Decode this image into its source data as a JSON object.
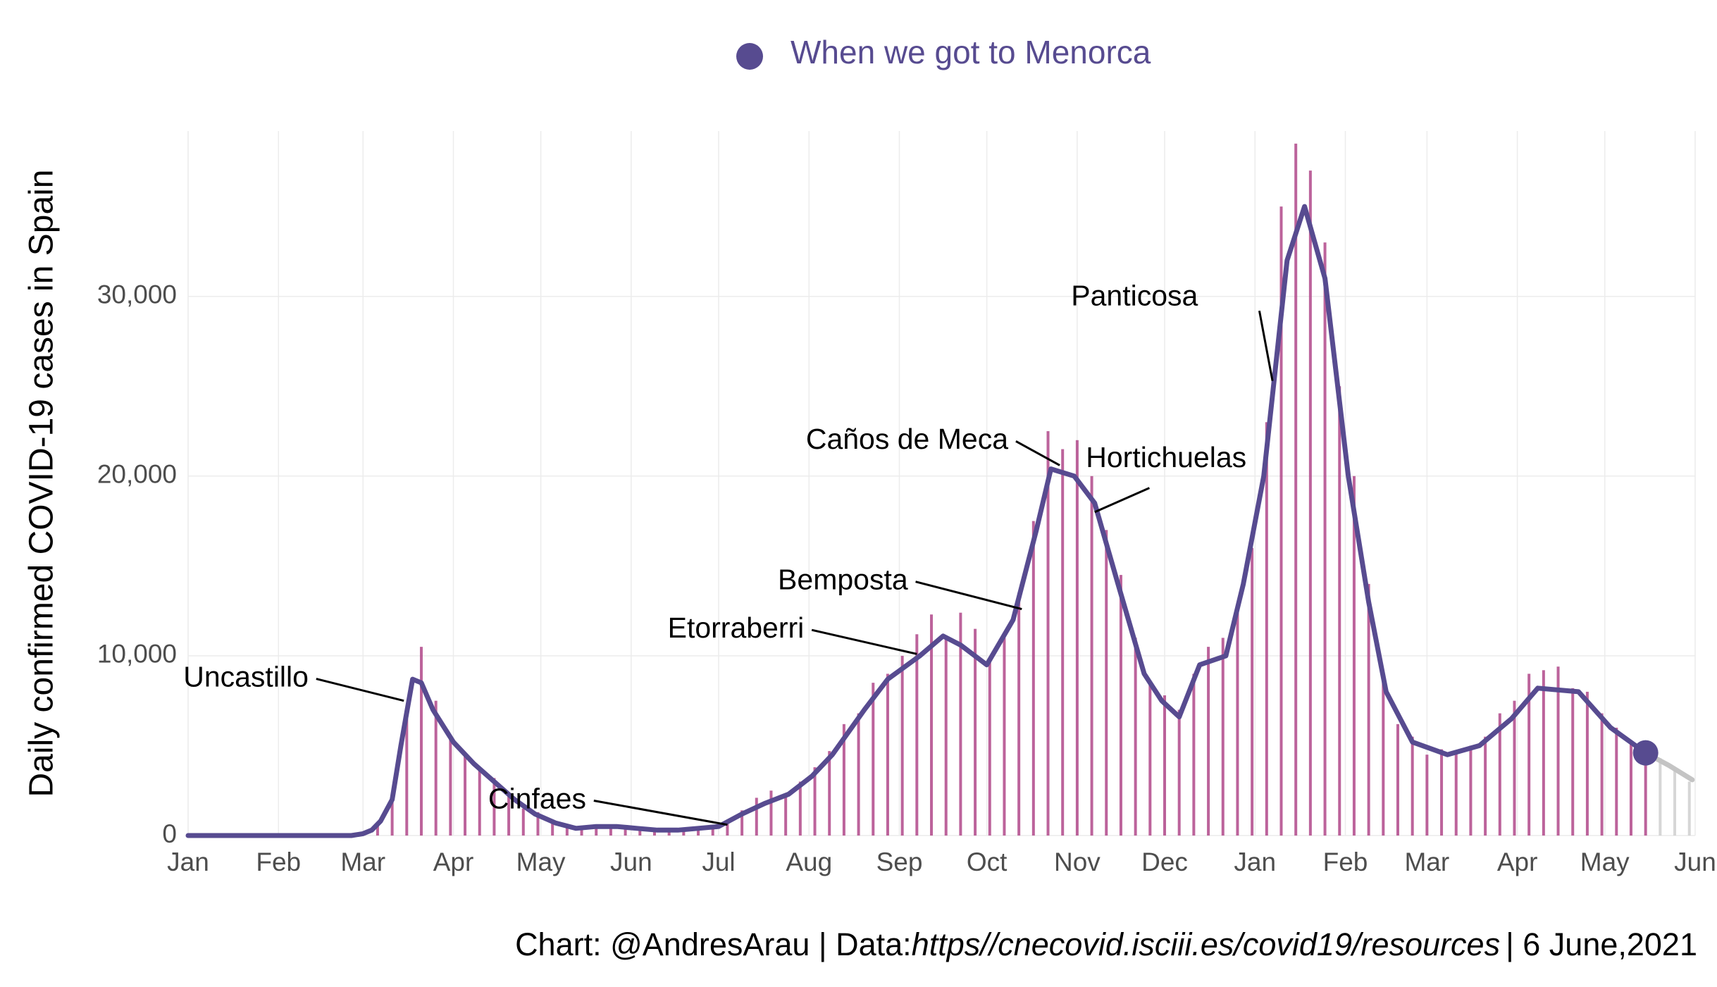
{
  "chart_data": {
    "type": "combo",
    "y_label": "Daily confirmed COVID-19 cases in Spain",
    "caption": {
      "prefix": "Chart: @AndresArau | Data:",
      "url": "https//cnecovid.isciii.es/covid19/resources",
      "suffix": "| 6 June,2021"
    },
    "xlim": [
      0,
      517
    ],
    "xticks": [
      {
        "value": 0,
        "label": "Jan"
      },
      {
        "value": 31,
        "label": "Feb"
      },
      {
        "value": 60,
        "label": "Mar"
      },
      {
        "value": 91,
        "label": "Apr"
      },
      {
        "value": 121,
        "label": "May"
      },
      {
        "value": 152,
        "label": "Jun"
      },
      {
        "value": 182,
        "label": "Jul"
      },
      {
        "value": 213,
        "label": "Aug"
      },
      {
        "value": 244,
        "label": "Sep"
      },
      {
        "value": 274,
        "label": "Oct"
      },
      {
        "value": 305,
        "label": "Nov"
      },
      {
        "value": 335,
        "label": "Dec"
      },
      {
        "value": 366,
        "label": "Jan"
      },
      {
        "value": 397,
        "label": "Feb"
      },
      {
        "value": 425,
        "label": "Mar"
      },
      {
        "value": 456,
        "label": "Apr"
      },
      {
        "value": 486,
        "label": "May"
      },
      {
        "value": 517,
        "label": "Jun"
      }
    ],
    "ylim": [
      0,
      39200
    ],
    "yticks": [
      0,
      {
        "value": 10000,
        "label": "10,000"
      },
      {
        "value": 20000,
        "label": "20,000"
      },
      {
        "value": 30000,
        "label": "30,000"
      }
    ],
    "grid": true,
    "legend": "top",
    "series": [
      {
        "type": "bar",
        "color": "#b0488a",
        "x": [
          60,
          65,
          70,
          75,
          80,
          85,
          90,
          95,
          100,
          105,
          110,
          115,
          120,
          125,
          130,
          135,
          140,
          145,
          150,
          155,
          160,
          165,
          170,
          175,
          180,
          185,
          190,
          195,
          200,
          205,
          210,
          215,
          220,
          225,
          230,
          235,
          240,
          245,
          250,
          255,
          260,
          265,
          270,
          275,
          280,
          285,
          290,
          295,
          300,
          305,
          310,
          315,
          320,
          325,
          330,
          335,
          340,
          345,
          350,
          355,
          360,
          365,
          370,
          375,
          380,
          385,
          390,
          395,
          400,
          405,
          410,
          415,
          420,
          425,
          430,
          435,
          440,
          445,
          450,
          455,
          460,
          465,
          470,
          475,
          480,
          485,
          490,
          495,
          500
        ],
        "values": [
          150,
          600,
          2000,
          6500,
          10500,
          7500,
          5500,
          4500,
          3800,
          3200,
          2300,
          1500,
          1300,
          800,
          500,
          400,
          600,
          500,
          500,
          450,
          300,
          350,
          300,
          350,
          500,
          800,
          1400,
          2100,
          2500,
          2200,
          3000,
          3800,
          4700,
          6200,
          6800,
          8500,
          9000,
          10000,
          11200,
          12300,
          11000,
          12400,
          11500,
          9800,
          11000,
          13500,
          17500,
          22500,
          21500,
          22000,
          20000,
          17000,
          14500,
          11000,
          8500,
          7800,
          7000,
          9000,
          10500,
          11000,
          12500,
          16000,
          23000,
          35000,
          38500,
          37000,
          33000,
          25000,
          20000,
          14000,
          9000,
          6200,
          5500,
          4500,
          4800,
          4600,
          5000,
          5500,
          6800,
          7500,
          9000,
          9200,
          9400,
          8200,
          8000,
          6800,
          6000,
          5200,
          4800
        ]
      },
      {
        "type": "bar",
        "color": "#cfcfcf",
        "x": [
          505,
          510,
          515
        ],
        "values": [
          4300,
          3800,
          3000
        ]
      },
      {
        "type": "line",
        "color": "#574b90",
        "x": [
          0,
          56,
          60,
          63,
          66,
          70,
          73,
          77,
          80,
          84,
          91,
          98,
          105,
          112,
          119,
          126,
          133,
          140,
          147,
          154,
          161,
          168,
          175,
          182,
          190,
          198,
          206,
          214,
          221,
          232,
          240,
          251,
          259,
          265,
          274,
          283,
          291,
          296,
          304,
          311,
          319,
          328,
          334,
          340,
          347,
          356,
          362,
          369,
          377,
          383,
          390,
          398,
          405,
          411,
          420,
          432,
          443,
          454,
          463,
          477,
          488,
          500
        ],
        "values": [
          0,
          0,
          100,
          300,
          800,
          2000,
          5000,
          8700,
          8500,
          7000,
          5200,
          4000,
          3000,
          2000,
          1200,
          700,
          400,
          500,
          500,
          400,
          300,
          300,
          400,
          500,
          1200,
          1800,
          2300,
          3300,
          4500,
          7000,
          8700,
          10000,
          11100,
          10600,
          9500,
          12000,
          17000,
          20400,
          20000,
          18500,
          14000,
          9000,
          7500,
          6600,
          9500,
          10000,
          14000,
          20000,
          32000,
          35000,
          31000,
          20000,
          13000,
          8000,
          5200,
          4500,
          5000,
          6500,
          8200,
          8000,
          6000,
          4600
        ]
      },
      {
        "type": "line",
        "color": "#c4c4c4",
        "x": [
          500,
          508,
          516
        ],
        "values": [
          4600,
          3900,
          3100
        ]
      },
      {
        "type": "point",
        "name": "When we got to Menorca",
        "color": "#574b90",
        "x": [
          500
        ],
        "values": [
          4600
        ]
      }
    ],
    "annotations": [
      {
        "text": "Uncastillo",
        "x": 74,
        "y": 7500
      },
      {
        "text": "Cinfaes",
        "x": 185,
        "y": 600
      },
      {
        "text": "Etorraberri",
        "x": 250,
        "y": 10100
      },
      {
        "text": "Bemposta",
        "x": 286,
        "y": 12600
      },
      {
        "text": "Caños de Meca",
        "x": 299,
        "y": 20600
      },
      {
        "text": "Hortichuelas",
        "x": 311,
        "y": 18000
      },
      {
        "text": "Panticosa",
        "x": 372,
        "y": 25300
      }
    ]
  }
}
